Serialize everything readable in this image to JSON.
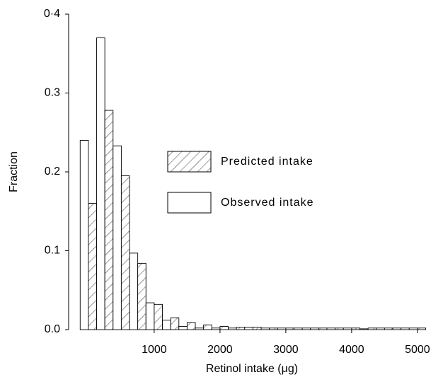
{
  "chart_data": {
    "type": "histogram",
    "xlabel": "Retinol intake (μg)",
    "ylabel": "Fraction",
    "bins": [
      -125,
      125,
      375,
      625,
      875,
      1125,
      1375,
      1625,
      1875,
      2125,
      2375,
      2625,
      2875,
      3125,
      3375,
      3625,
      3875,
      4125,
      4375,
      4625,
      4875,
      5125
    ],
    "series": [
      {
        "name": "Predicted intake",
        "color": "#000000",
        "hatch": true,
        "values": [
          0.16,
          0.278,
          0.195,
          0.084,
          0.032,
          0.015,
          0.009,
          0.006,
          0.004,
          0.003,
          0.003,
          0.002,
          0.002,
          0.002,
          0.002,
          0.002,
          0.002,
          0.002,
          0.002,
          0.002,
          0.002
        ]
      },
      {
        "name": "Observed intake",
        "color": "#000000",
        "hatch": false,
        "values": [
          0.24,
          0.37,
          0.233,
          0.097,
          0.034,
          0.012,
          0.004,
          0.002,
          0.002,
          0.002,
          0.003,
          0.002,
          0.002,
          0.002,
          0.002,
          0.002,
          0.002,
          0.001,
          0.002,
          0.002,
          0.002
        ]
      }
    ],
    "xlim": [
      -300,
      5270
    ],
    "ylim": [
      0,
      0.4
    ],
    "xticks": [
      1000,
      2000,
      3000,
      4000,
      5000
    ],
    "yticks": [
      {
        "value": 0,
        "label": "0.0"
      },
      {
        "value": 0.1,
        "label": "0.1"
      },
      {
        "value": 0.2,
        "label": "0.2"
      },
      {
        "value": 0.3,
        "label": "0.3"
      },
      {
        "value": 0.4,
        "label": "0·4"
      }
    ]
  }
}
